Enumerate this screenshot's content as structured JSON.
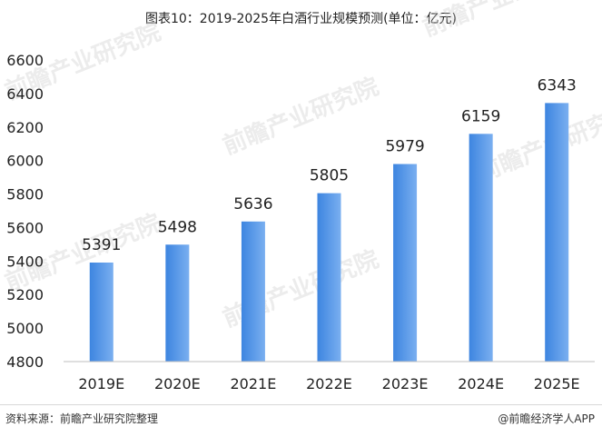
{
  "title": "图表10：2019-2025年白酒行业规模预测(单位：亿元)",
  "chart_data": {
    "type": "bar",
    "title": "图表10：2019-2025年白酒行业规模预测(单位：亿元)",
    "xlabel": "",
    "ylabel": "",
    "categories": [
      "2019E",
      "2020E",
      "2021E",
      "2022E",
      "2023E",
      "2024E",
      "2025E"
    ],
    "values": [
      5391,
      5498,
      5636,
      5805,
      5979,
      6159,
      6343
    ],
    "ylim": [
      4800,
      6600
    ],
    "yticks": [
      4800,
      5000,
      5200,
      5400,
      5600,
      5800,
      6000,
      6200,
      6400,
      6600
    ],
    "grid": false,
    "legend": "none",
    "bar_color_start": "#3d85e0",
    "bar_color_end": "#7aaff0"
  },
  "watermark": "前瞻产业研究院",
  "footer": {
    "source": "资料来源：前瞻产业研究院整理",
    "credit": "@前瞻经济学人APP"
  }
}
